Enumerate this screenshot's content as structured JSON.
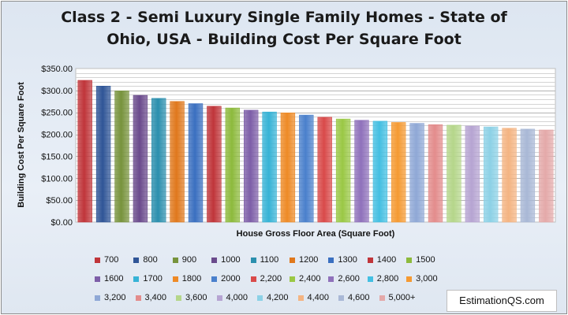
{
  "chart_data": {
    "type": "bar",
    "title_lines": [
      "Class 2 - Semi Luxury Single Family Homes  - State of",
      "Ohio, USA  - Building Cost Per Square Foot"
    ],
    "xlabel": "House Gross Floor Area (Square Foot)",
    "ylabel": "Building Cost Per Square Foot",
    "ylim": [
      0,
      350
    ],
    "yticks": [
      0,
      50,
      100,
      150,
      200,
      250,
      300,
      350
    ],
    "ytick_labels": [
      "$0.00",
      "$50.00",
      "$100.00",
      "$150.00",
      "$200.00",
      "$250.00",
      "$300.00",
      "$350.00"
    ],
    "grid": true,
    "legend_position": "bottom",
    "series": [
      {
        "name": "700",
        "value": 323,
        "color": "#c0353a"
      },
      {
        "name": "800",
        "value": 310,
        "color": "#2f5597"
      },
      {
        "name": "900",
        "value": 299,
        "color": "#77933c"
      },
      {
        "name": "1000",
        "value": 289,
        "color": "#6a4a8c"
      },
      {
        "name": "1100",
        "value": 282,
        "color": "#2b8fae"
      },
      {
        "name": "1200",
        "value": 275,
        "color": "#e0781c"
      },
      {
        "name": "1300",
        "value": 270,
        "color": "#3a6fc0"
      },
      {
        "name": "1400",
        "value": 264,
        "color": "#c0353a"
      },
      {
        "name": "1500",
        "value": 260,
        "color": "#8dba3c"
      },
      {
        "name": "1600",
        "value": 255,
        "color": "#7d5ea8"
      },
      {
        "name": "1700",
        "value": 251,
        "color": "#36b3d6"
      },
      {
        "name": "1800",
        "value": 249,
        "color": "#ee8a26"
      },
      {
        "name": "2000",
        "value": 244,
        "color": "#4a80cc"
      },
      {
        "name": "2,200",
        "value": 239,
        "color": "#d94a4a"
      },
      {
        "name": "2,400",
        "value": 235,
        "color": "#9ac845"
      },
      {
        "name": "2,600",
        "value": 232,
        "color": "#8f71bb"
      },
      {
        "name": "2,800",
        "value": 230,
        "color": "#43bfe2"
      },
      {
        "name": "3,000",
        "value": 227,
        "color": "#f59a32"
      },
      {
        "name": "3,200",
        "value": 225,
        "color": "#8fa8d6"
      },
      {
        "name": "3,400",
        "value": 222,
        "color": "#e38c8c"
      },
      {
        "name": "3,600",
        "value": 221,
        "color": "#b5d68a"
      },
      {
        "name": "4,000",
        "value": 219,
        "color": "#b6a4d2"
      },
      {
        "name": "4,200",
        "value": 217,
        "color": "#8cd1e6"
      },
      {
        "name": "4,400",
        "value": 214,
        "color": "#f4b482"
      },
      {
        "name": "4,600",
        "value": 212,
        "color": "#a9b8d6"
      },
      {
        "name": "5,000+",
        "value": 210,
        "color": "#e4a9a9"
      }
    ]
  },
  "legend_rows": [
    [
      "700",
      "800",
      "900",
      "1000",
      "1100",
      "1200",
      "1300",
      "1400",
      "1500"
    ],
    [
      "1600",
      "1700",
      "1800",
      "2000",
      "2,200",
      "2,400",
      "2,600",
      "2,800",
      "3,000"
    ],
    [
      "3,200",
      "3,400",
      "3,600",
      "4,000",
      "4,200",
      "4,400",
      "4,600",
      "5,000+"
    ]
  ],
  "watermark": "EstimationQS.com"
}
